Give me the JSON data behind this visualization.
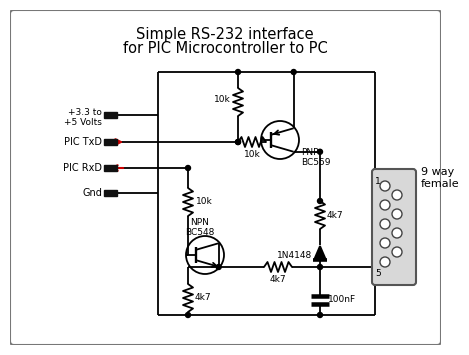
{
  "title_line1": "Simple RS-232 interface",
  "title_line2": "for PIC Microcontroller to PC",
  "bg_color": "#ffffff",
  "border_color": "#888888",
  "line_color": "#000000",
  "label_vcc": "+3.3 to\n+5 Volts",
  "label_txd": "PIC TxD",
  "label_rxd": "PIC RxD",
  "label_gnd": "Gnd",
  "label_pnp": "PNP\nBC559",
  "label_npn": "NPN\nBC548",
  "label_r1": "10k",
  "label_r2": "10k",
  "label_r3": "10k",
  "label_r4": "4k7",
  "label_r5": "4k7",
  "label_r6": "4k7",
  "label_d1": "1N4148",
  "label_c1": "100nF",
  "label_9way": "9 way\nfemale",
  "arrow_color": "#cc0000",
  "connector_color": "#aaaaaa"
}
